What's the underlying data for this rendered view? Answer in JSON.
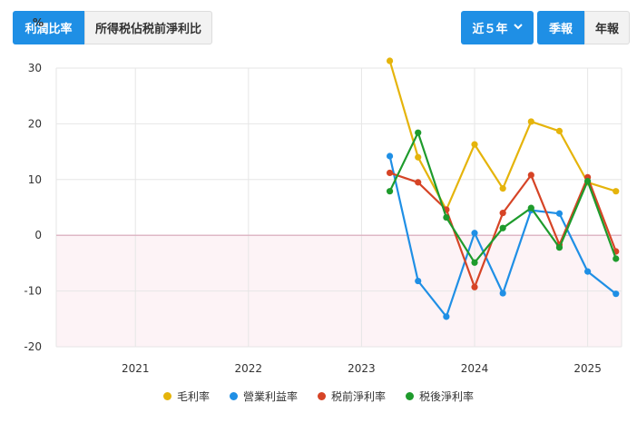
{
  "toolbar": {
    "tab_ratio": "利潤比率",
    "tab_income": "所得税佔税前淨利比",
    "range_label": "近５年",
    "period_quarterly": "季報",
    "period_annual": "年報"
  },
  "colors": {
    "primary": "#1f8fe5",
    "grid": "#e6e6e6",
    "zero_line": "#d9a7b8",
    "negative_fill": "#fdf3f6"
  },
  "chart_data": {
    "type": "line",
    "ylabel": "%",
    "ylim": [
      -20,
      30
    ],
    "yticks": [
      30,
      20,
      10,
      0,
      -10,
      -20
    ],
    "xlim": [
      2020.3,
      2025.3
    ],
    "xticks": [
      2021,
      2022,
      2023,
      2024,
      2025
    ],
    "xtick_labels": [
      "2021",
      "2022",
      "2023",
      "2024",
      "2025"
    ],
    "grid": true,
    "legend_position": "bottom",
    "x": [
      2023.25,
      2023.5,
      2023.75,
      2024.0,
      2024.25,
      2024.5,
      2024.75,
      2025.0,
      2025.25
    ],
    "series": [
      {
        "name": "毛利率",
        "color": "#e5b40b",
        "values": [
          31.3,
          14.0,
          4.6,
          16.3,
          8.4,
          20.4,
          18.7,
          9.5,
          7.9
        ]
      },
      {
        "name": "營業利益率",
        "color": "#1f8fe5",
        "values": [
          14.2,
          -8.2,
          -14.6,
          0.4,
          -10.4,
          4.5,
          3.9,
          -6.5,
          -10.5
        ]
      },
      {
        "name": "税前淨利率",
        "color": "#d64426",
        "values": [
          11.2,
          9.5,
          4.6,
          -9.3,
          4.0,
          10.8,
          -1.7,
          10.4,
          -2.9
        ]
      },
      {
        "name": "税後淨利率",
        "color": "#1e9b2c",
        "values": [
          7.9,
          18.4,
          3.2,
          -4.9,
          1.3,
          4.9,
          -2.2,
          9.7,
          -4.2
        ]
      }
    ]
  }
}
